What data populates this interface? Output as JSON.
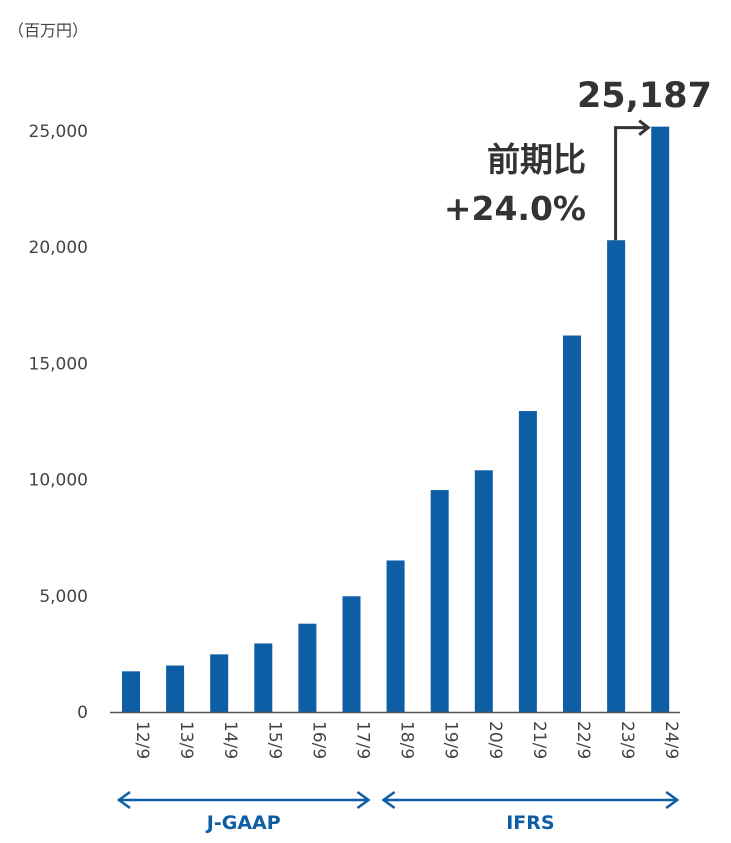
{
  "chart_data": {
    "type": "bar",
    "unit_label": "（百万円）",
    "categories": [
      "12/9",
      "13/9",
      "14/9",
      "15/9",
      "16/9",
      "17/9",
      "18/9",
      "19/9",
      "20/9",
      "21/9",
      "22/9",
      "23/9",
      "24/9"
    ],
    "values": [
      1750,
      2000,
      2480,
      2950,
      3800,
      4980,
      6520,
      9550,
      10400,
      12950,
      16200,
      20300,
      25187
    ],
    "ylim": [
      0,
      25000
    ],
    "yticks": [
      0,
      5000,
      10000,
      15000,
      20000,
      25000
    ],
    "ytick_labels": [
      "0",
      "5,000",
      "10,000",
      "15,000",
      "20,000",
      "25,000"
    ],
    "grid": false,
    "bar_color": "#0e5ea6",
    "highlight": {
      "value_label": "25,187",
      "change_label": "前期比",
      "change_value": "+24.0%"
    },
    "standards": [
      {
        "label": "J-GAAP",
        "from": "12/9",
        "to": "17/9"
      },
      {
        "label": "IFRS",
        "from": "18/9",
        "to": "24/9"
      }
    ]
  }
}
